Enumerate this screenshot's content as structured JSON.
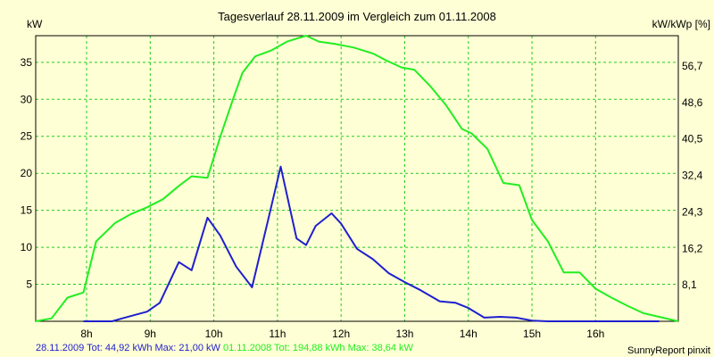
{
  "chart_data": {
    "type": "line",
    "title": "Tagesverlauf 28.11.2009 im Vergleich zum 01.11.2008",
    "ylabel_left": "kW",
    "ylabel_right": "kW/kWp [%]",
    "xlim": [
      7.2,
      17.3
    ],
    "ylim": [
      0,
      38.6
    ],
    "x_ticks": [
      {
        "value": 8,
        "label": "8h"
      },
      {
        "value": 9,
        "label": "9h"
      },
      {
        "value": 10,
        "label": "10h"
      },
      {
        "value": 11,
        "label": "11h"
      },
      {
        "value": 12,
        "label": "12h"
      },
      {
        "value": 13,
        "label": "13h"
      },
      {
        "value": 14,
        "label": "14h"
      },
      {
        "value": 15,
        "label": "15h"
      },
      {
        "value": 16,
        "label": "16h"
      }
    ],
    "y_ticks_left": [
      {
        "value": 5,
        "label": "5"
      },
      {
        "value": 10,
        "label": "10"
      },
      {
        "value": 15,
        "label": "15"
      },
      {
        "value": 20,
        "label": "20"
      },
      {
        "value": 25,
        "label": "25"
      },
      {
        "value": 30,
        "label": "30"
      },
      {
        "value": 35,
        "label": "35"
      }
    ],
    "y_ticks_right": [
      {
        "value": 4.93,
        "label": "8,1"
      },
      {
        "value": 9.86,
        "label": "16,2"
      },
      {
        "value": 14.79,
        "label": "24,3"
      },
      {
        "value": 19.72,
        "label": "32,4"
      },
      {
        "value": 24.65,
        "label": "40,5"
      },
      {
        "value": 29.58,
        "label": "48,6"
      },
      {
        "value": 34.51,
        "label": "56,7"
      }
    ],
    "grid": true,
    "series": [
      {
        "name": "01.11.2008",
        "color": "#22ee22",
        "x": [
          7.2,
          7.45,
          7.7,
          7.95,
          8.15,
          8.45,
          8.7,
          8.95,
          9.2,
          9.45,
          9.65,
          9.9,
          10.1,
          10.3,
          10.45,
          10.65,
          10.9,
          11.15,
          11.45,
          11.65,
          11.9,
          12.2,
          12.5,
          12.7,
          12.95,
          13.15,
          13.4,
          13.65,
          13.9,
          14.05,
          14.3,
          14.55,
          14.8,
          15.0,
          15.25,
          15.5,
          15.75,
          16.0,
          16.25,
          16.5,
          16.75,
          17.3
        ],
        "y": [
          0,
          0.4,
          3.2,
          3.9,
          10.8,
          13.3,
          14.5,
          15.4,
          16.5,
          18.3,
          19.6,
          19.4,
          24.9,
          30.0,
          33.6,
          35.8,
          36.6,
          37.8,
          38.6,
          37.8,
          37.5,
          37.0,
          36.2,
          35.3,
          34.3,
          34.0,
          31.8,
          29.2,
          26.0,
          25.4,
          23.3,
          18.7,
          18.4,
          13.7,
          10.8,
          6.6,
          6.6,
          4.4,
          3.2,
          2.1,
          1.1,
          0
        ]
      },
      {
        "name": "28.11.2009",
        "color": "#1f1fcf",
        "x": [
          7.95,
          8.4,
          8.6,
          8.95,
          9.15,
          9.45,
          9.65,
          9.9,
          10.1,
          10.35,
          10.6,
          10.85,
          11.05,
          11.3,
          11.45,
          11.6,
          11.85,
          12.0,
          12.25,
          12.5,
          12.75,
          13.0,
          13.25,
          13.55,
          13.8,
          14.0,
          14.25,
          14.5,
          14.75,
          15.0,
          15.25,
          15.5,
          15.75,
          16.0,
          16.25,
          16.5,
          16.75,
          17.0
        ],
        "y": [
          0,
          0,
          0.5,
          1.3,
          2.5,
          8.0,
          6.9,
          14.0,
          11.6,
          7.4,
          4.6,
          13.6,
          20.9,
          11.2,
          10.3,
          12.9,
          14.6,
          13.2,
          9.8,
          8.4,
          6.5,
          5.3,
          4.2,
          2.7,
          2.5,
          1.8,
          0.5,
          0.6,
          0.5,
          0.1,
          0,
          0,
          0,
          0,
          0,
          0,
          0,
          0
        ]
      }
    ],
    "legend": [
      {
        "text": "28.11.2009 Tot: 44,92 kWh Max: 21,00 kW",
        "color": "#1f1fcf"
      },
      {
        "text": "01.11.2008 Tot: 194,88 kWh Max: 38,64 kW",
        "color": "#22ee22"
      }
    ],
    "legend_placement": "bottom-left",
    "credit": "SunnyReport pinxit"
  }
}
